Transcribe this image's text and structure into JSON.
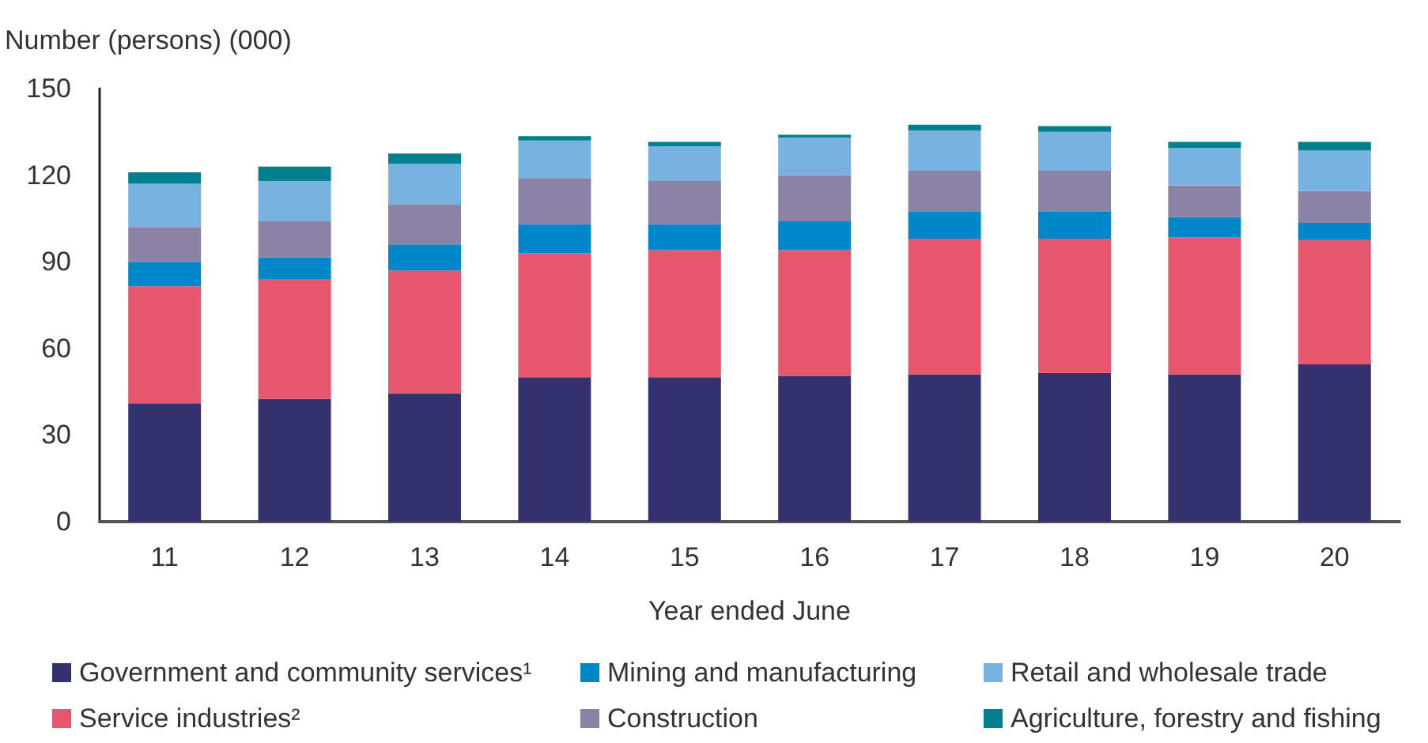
{
  "chart_data": {
    "type": "bar",
    "stacked": true,
    "xlabel": "Year ended June",
    "ylabel": "Number (persons) (000)",
    "categories": [
      "11",
      "12",
      "13",
      "14",
      "15",
      "16",
      "17",
      "18",
      "19",
      "20"
    ],
    "series": [
      {
        "name": "Government and community services¹",
        "color": "#34326e",
        "values": [
          41,
          42.5,
          44.5,
          50,
          50,
          50.5,
          51,
          51.5,
          51,
          54.5
        ]
      },
      {
        "name": "Service industries²",
        "color": "#e6566c",
        "values": [
          40.5,
          41.5,
          42.5,
          43,
          44,
          43.5,
          47,
          46.5,
          47.5,
          43
        ]
      },
      {
        "name": "Mining and manufacturing",
        "color": "#0087c9",
        "values": [
          8.5,
          7.5,
          9,
          10,
          9,
          10,
          9.5,
          9.5,
          7,
          6
        ]
      },
      {
        "name": "Construction",
        "color": "#8b82a5",
        "values": [
          12,
          12.5,
          14,
          16,
          15,
          16,
          14,
          14,
          11,
          11
        ]
      },
      {
        "name": "Retail and wholesale trade",
        "color": "#78b2e0",
        "values": [
          15,
          14,
          14,
          13,
          12,
          13,
          14,
          13.5,
          13,
          14
        ]
      },
      {
        "name": "Agriculture, forestry and fishing",
        "color": "#007f8f",
        "values": [
          4,
          5,
          3.5,
          1.5,
          1.5,
          1,
          2,
          2,
          2,
          3
        ]
      }
    ],
    "ylim": [
      0,
      150
    ],
    "yticks": [
      0,
      30,
      60,
      90,
      120,
      150
    ],
    "grid": false,
    "legend": "bottom"
  }
}
